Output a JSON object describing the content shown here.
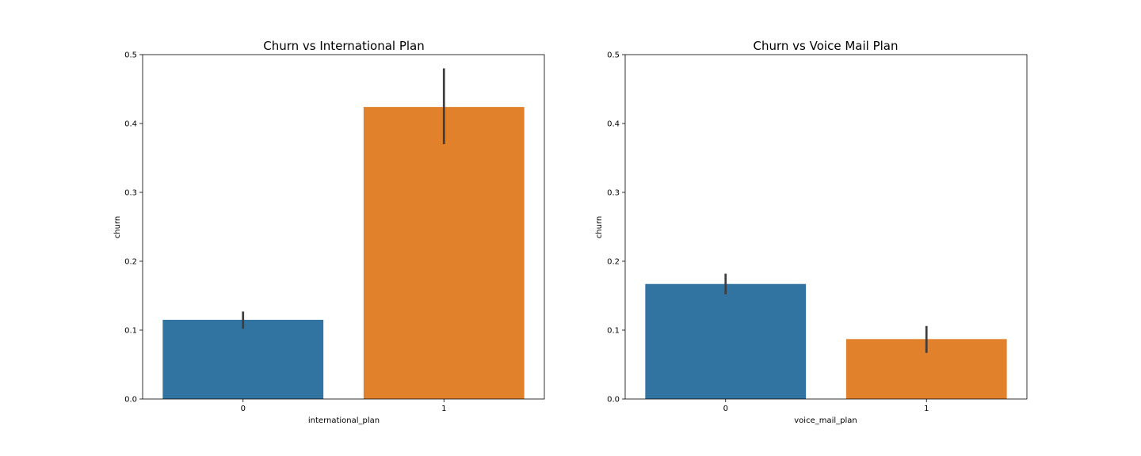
{
  "chart_data": [
    {
      "type": "bar",
      "title": "Churn vs International Plan",
      "xlabel": "international_plan",
      "ylabel": "churn",
      "categories": [
        "0",
        "1"
      ],
      "values": [
        0.115,
        0.424
      ],
      "error_bars": [
        [
          0.102,
          0.127
        ],
        [
          0.37,
          0.48
        ]
      ],
      "colors": [
        "#3274a1",
        "#e1812c"
      ],
      "ylim": [
        0,
        0.5
      ],
      "yticks": [
        "0.0",
        "0.1",
        "0.2",
        "0.3",
        "0.4",
        "0.5"
      ],
      "grid": false
    },
    {
      "type": "bar",
      "title": "Churn vs Voice Mail Plan",
      "xlabel": "voice_mail_plan",
      "ylabel": "churn",
      "categories": [
        "0",
        "1"
      ],
      "values": [
        0.167,
        0.087
      ],
      "error_bars": [
        [
          0.152,
          0.182
        ],
        [
          0.067,
          0.106
        ]
      ],
      "colors": [
        "#3274a1",
        "#e1812c"
      ],
      "ylim": [
        0,
        0.5
      ],
      "yticks": [
        "0.0",
        "0.1",
        "0.2",
        "0.3",
        "0.4",
        "0.5"
      ],
      "grid": false
    }
  ]
}
